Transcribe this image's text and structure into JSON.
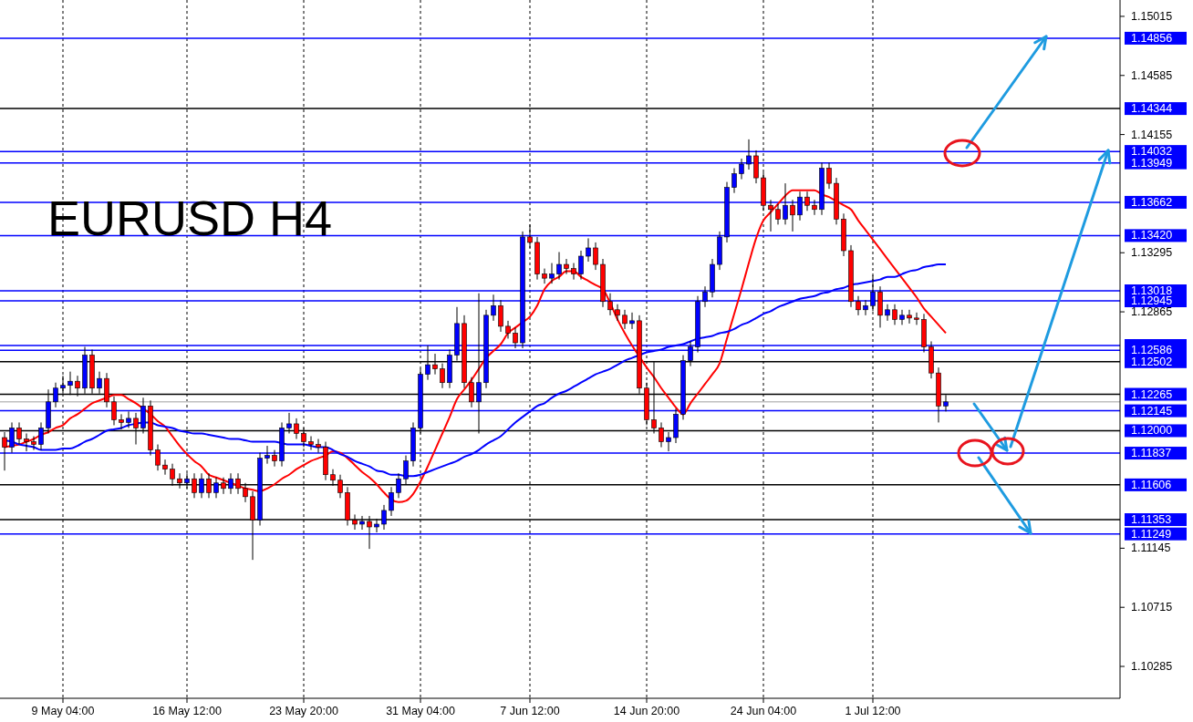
{
  "chart_data": {
    "type": "candlestick",
    "title": "EURUSD H4",
    "categories": [
      null,
      null,
      null,
      null,
      null,
      null,
      null,
      null,
      "9 May 04:00",
      null,
      null,
      null,
      null,
      null,
      null,
      null,
      null,
      null,
      null,
      null,
      null,
      null,
      null,
      null,
      null,
      "16 May 12:00",
      null,
      null,
      null,
      null,
      null,
      null,
      null,
      null,
      null,
      null,
      null,
      null,
      null,
      null,
      null,
      "23 May 20:00",
      null,
      null,
      null,
      null,
      null,
      null,
      null,
      null,
      null,
      null,
      null,
      null,
      null,
      null,
      null,
      "31 May 04:00",
      null,
      null,
      null,
      null,
      null,
      null,
      null,
      null,
      null,
      null,
      null,
      null,
      null,
      null,
      "7 Jun 12:00",
      null,
      null,
      null,
      null,
      null,
      null,
      null,
      null,
      null,
      null,
      null,
      null,
      null,
      null,
      null,
      "14 Jun 20:00",
      null,
      null,
      null,
      null,
      null,
      null,
      null,
      null,
      null,
      null,
      null,
      null,
      null,
      null,
      null,
      "24 Jun 04:00",
      null,
      null,
      null,
      null,
      null,
      null,
      null,
      null,
      null,
      null,
      null,
      null,
      null,
      null,
      "1 Jul 12:00",
      null,
      null,
      null,
      null,
      null,
      null,
      null,
      null,
      null,
      null
    ],
    "colors": [
      "#ff0000",
      "#0000ff",
      "#ff0000",
      "#ff0000",
      "#ff0000",
      "#0000ff",
      "#0000ff",
      "#0000ff",
      "#0000ff",
      "#0000ff",
      "#ff0000",
      "#0000ff",
      "#ff0000",
      "#0000ff",
      "#ff0000",
      "#ff0000",
      "#ff0000",
      "#0000ff",
      "#ff0000",
      "#0000ff",
      "#ff0000",
      "#ff0000",
      "#ff0000",
      "#ff0000",
      "#ff0000",
      "#0000ff",
      "#ff0000",
      "#0000ff",
      "#ff0000",
      "#0000ff",
      "#ff0000",
      "#0000ff",
      "#ff0000",
      "#ff0000",
      "#ff0000",
      "#0000ff",
      "#0000ff",
      "#ff0000",
      "#0000ff",
      "#0000ff",
      "#ff0000",
      "#ff0000",
      "#ff0000",
      "#ff0000",
      "#ff0000",
      "#ff0000",
      "#ff0000",
      "#ff0000",
      "#ff0000",
      "#0000ff",
      "#ff0000",
      "#0000ff",
      "#0000ff",
      "#0000ff",
      "#0000ff",
      "#0000ff",
      "#0000ff",
      "#0000ff",
      "#0000ff",
      "#ff0000",
      "#ff0000",
      "#0000ff",
      "#0000ff",
      "#ff0000",
      "#ff0000",
      "#0000ff",
      "#0000ff",
      "#0000ff",
      "#ff0000",
      "#ff0000",
      "#ff0000",
      "#0000ff",
      "#ff0000",
      "#ff0000",
      "#ff0000",
      "#0000ff",
      "#0000ff",
      "#ff0000",
      "#ff0000",
      "#0000ff",
      "#0000ff",
      "#ff0000",
      "#ff0000",
      "#ff0000",
      "#ff0000",
      "#ff0000",
      "#0000ff",
      "#ff0000",
      "#ff0000",
      "#ff0000",
      "#ff0000",
      "#0000ff",
      "#0000ff",
      "#0000ff",
      "#0000ff",
      "#0000ff",
      "#0000ff",
      "#0000ff",
      "#0000ff",
      "#0000ff",
      "#0000ff",
      "#0000ff",
      "#0000ff",
      "#ff0000",
      "#ff0000",
      "#ff0000",
      "#ff0000",
      "#0000ff",
      "#ff0000",
      "#0000ff",
      "#ff0000",
      "#ff0000",
      "#0000ff",
      "#ff0000",
      "#ff0000",
      "#ff0000",
      "#ff0000",
      "#ff0000",
      "#0000ff",
      "#0000ff",
      "#ff0000",
      "#0000ff",
      "#ff0000",
      "#0000ff",
      "#ff0000",
      "#ff0000",
      "#ff0000",
      "#ff0000",
      "#ff0000",
      "#0000ff"
    ],
    "ohlc": [
      [
        1.1195,
        1.1199,
        1.1171,
        1.1188
      ],
      [
        1.1188,
        1.1206,
        1.1184,
        1.1202
      ],
      [
        1.1202,
        1.1206,
        1.119,
        1.1194
      ],
      [
        1.1194,
        1.1198,
        1.1185,
        1.1192
      ],
      [
        1.1192,
        1.1196,
        1.1186,
        1.119
      ],
      [
        1.119,
        1.1206,
        1.1186,
        1.1202
      ],
      [
        1.1202,
        1.123,
        1.1198,
        1.1221
      ],
      [
        1.1221,
        1.1235,
        1.1217,
        1.1231
      ],
      [
        1.1231,
        1.124,
        1.1227,
        1.1233
      ],
      [
        1.1233,
        1.1243,
        1.1226,
        1.1236
      ],
      [
        1.1236,
        1.124,
        1.1225,
        1.1231
      ],
      [
        1.1231,
        1.1261,
        1.1227,
        1.1255
      ],
      [
        1.1255,
        1.1259,
        1.1227,
        1.1231
      ],
      [
        1.1231,
        1.1243,
        1.1227,
        1.1238
      ],
      [
        1.1238,
        1.1242,
        1.1217,
        1.1221
      ],
      [
        1.1221,
        1.1225,
        1.1204,
        1.1208
      ],
      [
        1.1208,
        1.1212,
        1.1201,
        1.1206
      ],
      [
        1.1206,
        1.1214,
        1.1202,
        1.1209
      ],
      [
        1.1209,
        1.1213,
        1.119,
        1.1202
      ],
      [
        1.1202,
        1.1224,
        1.1198,
        1.1218
      ],
      [
        1.1218,
        1.1222,
        1.1182,
        1.1186
      ],
      [
        1.1186,
        1.119,
        1.1171,
        1.1175
      ],
      [
        1.1175,
        1.1179,
        1.1168,
        1.1172
      ],
      [
        1.1172,
        1.1176,
        1.116,
        1.1165
      ],
      [
        1.1165,
        1.1169,
        1.1158,
        1.1162
      ],
      [
        1.1162,
        1.1169,
        1.1158,
        1.1165
      ],
      [
        1.1165,
        1.1169,
        1.1151,
        1.1155
      ],
      [
        1.1155,
        1.1169,
        1.1151,
        1.1165
      ],
      [
        1.1165,
        1.1169,
        1.1151,
        1.1155
      ],
      [
        1.1155,
        1.1166,
        1.1151,
        1.1162
      ],
      [
        1.1162,
        1.1166,
        1.1154,
        1.1158
      ],
      [
        1.1158,
        1.1169,
        1.1154,
        1.1165
      ],
      [
        1.1165,
        1.1169,
        1.1154,
        1.1158
      ],
      [
        1.1158,
        1.1162,
        1.1148,
        1.1152
      ],
      [
        1.1152,
        1.1156,
        1.1106,
        1.1135
      ],
      [
        1.1135,
        1.1184,
        1.1131,
        1.118
      ],
      [
        1.118,
        1.1189,
        1.1176,
        1.1182
      ],
      [
        1.1182,
        1.1186,
        1.1174,
        1.1178
      ],
      [
        1.1178,
        1.1206,
        1.1174,
        1.1202
      ],
      [
        1.1202,
        1.1213,
        1.1198,
        1.1205
      ],
      [
        1.1205,
        1.1209,
        1.1194,
        1.1198
      ],
      [
        1.1198,
        1.1202,
        1.1188,
        1.1192
      ],
      [
        1.1192,
        1.1196,
        1.1186,
        1.119
      ],
      [
        1.119,
        1.1194,
        1.1184,
        1.1188
      ],
      [
        1.1188,
        1.1192,
        1.1164,
        1.1168
      ],
      [
        1.1168,
        1.1172,
        1.116,
        1.1164
      ],
      [
        1.1164,
        1.1168,
        1.1151,
        1.1155
      ],
      [
        1.1155,
        1.1159,
        1.1131,
        1.1135
      ],
      [
        1.1135,
        1.1139,
        1.1128,
        1.1132
      ],
      [
        1.1132,
        1.1138,
        1.1128,
        1.1134
      ],
      [
        1.1134,
        1.1138,
        1.1114,
        1.113
      ],
      [
        1.113,
        1.1136,
        1.1126,
        1.1132
      ],
      [
        1.1132,
        1.1146,
        1.1128,
        1.1142
      ],
      [
        1.1142,
        1.1159,
        1.1138,
        1.1155
      ],
      [
        1.1155,
        1.1169,
        1.1151,
        1.1165
      ],
      [
        1.1165,
        1.1182,
        1.1161,
        1.1178
      ],
      [
        1.1178,
        1.1206,
        1.1174,
        1.1202
      ],
      [
        1.1202,
        1.1245,
        1.1198,
        1.1241
      ],
      [
        1.1241,
        1.1262,
        1.1237,
        1.1248
      ],
      [
        1.1248,
        1.1256,
        1.1241,
        1.1245
      ],
      [
        1.1245,
        1.1249,
        1.1231,
        1.1235
      ],
      [
        1.1235,
        1.1259,
        1.1231,
        1.1255
      ],
      [
        1.1255,
        1.129,
        1.1251,
        1.1278
      ],
      [
        1.1278,
        1.1284,
        1.1231,
        1.1235
      ],
      [
        1.1235,
        1.1239,
        1.1217,
        1.1221
      ],
      [
        1.1221,
        1.13,
        1.1198,
        1.1235
      ],
      [
        1.1235,
        1.1288,
        1.1231,
        1.1284
      ],
      [
        1.1284,
        1.1299,
        1.128,
        1.1291
      ],
      [
        1.1291,
        1.1295,
        1.1272,
        1.1276
      ],
      [
        1.1276,
        1.128,
        1.1267,
        1.1271
      ],
      [
        1.1271,
        1.1275,
        1.126,
        1.1264
      ],
      [
        1.1264,
        1.1345,
        1.126,
        1.1341
      ],
      [
        1.1341,
        1.135,
        1.1333,
        1.1337
      ],
      [
        1.1337,
        1.1341,
        1.131,
        1.1314
      ],
      [
        1.1314,
        1.1318,
        1.1307,
        1.1311
      ],
      [
        1.1311,
        1.1322,
        1.1307,
        1.1314
      ],
      [
        1.1314,
        1.133,
        1.131,
        1.1321
      ],
      [
        1.1321,
        1.1325,
        1.1314,
        1.1318
      ],
      [
        1.1318,
        1.1322,
        1.131,
        1.1314
      ],
      [
        1.1314,
        1.1331,
        1.131,
        1.1327
      ],
      [
        1.1327,
        1.134,
        1.1323,
        1.1333
      ],
      [
        1.1333,
        1.1337,
        1.1317,
        1.1321
      ],
      [
        1.1321,
        1.1325,
        1.129,
        1.1294
      ],
      [
        1.1294,
        1.13,
        1.1284,
        1.1288
      ],
      [
        1.1288,
        1.1292,
        1.128,
        1.1284
      ],
      [
        1.1284,
        1.1288,
        1.1274,
        1.1278
      ],
      [
        1.1278,
        1.1286,
        1.1274,
        1.128
      ],
      [
        1.128,
        1.1284,
        1.1227,
        1.1231
      ],
      [
        1.1231,
        1.1235,
        1.1204,
        1.1208
      ],
      [
        1.1208,
        1.125,
        1.1198,
        1.1202
      ],
      [
        1.1202,
        1.1206,
        1.1188,
        1.1192
      ],
      [
        1.1192,
        1.1199,
        1.1185,
        1.1195
      ],
      [
        1.1195,
        1.1216,
        1.1191,
        1.1212
      ],
      [
        1.1212,
        1.1255,
        1.1208,
        1.1251
      ],
      [
        1.1251,
        1.1265,
        1.1247,
        1.1261
      ],
      [
        1.1261,
        1.1298,
        1.1257,
        1.1294
      ],
      [
        1.1294,
        1.1305,
        1.129,
        1.1301
      ],
      [
        1.1301,
        1.1325,
        1.1297,
        1.1321
      ],
      [
        1.1321,
        1.1345,
        1.1317,
        1.1341
      ],
      [
        1.1341,
        1.1381,
        1.1337,
        1.1377
      ],
      [
        1.1377,
        1.1391,
        1.1373,
        1.1387
      ],
      [
        1.1387,
        1.1398,
        1.1383,
        1.1394
      ],
      [
        1.1394,
        1.1412,
        1.139,
        1.14
      ],
      [
        1.14,
        1.1404,
        1.138,
        1.1384
      ],
      [
        1.1384,
        1.1388,
        1.136,
        1.1364
      ],
      [
        1.1364,
        1.1368,
        1.1345,
        1.1361
      ],
      [
        1.1361,
        1.1365,
        1.135,
        1.1354
      ],
      [
        1.1354,
        1.138,
        1.135,
        1.1364
      ],
      [
        1.1364,
        1.1368,
        1.1345,
        1.1357
      ],
      [
        1.1357,
        1.1374,
        1.1353,
        1.137
      ],
      [
        1.137,
        1.1374,
        1.136,
        1.1364
      ],
      [
        1.1364,
        1.1368,
        1.1357,
        1.1361
      ],
      [
        1.1361,
        1.1395,
        1.1357,
        1.1391
      ],
      [
        1.1391,
        1.1395,
        1.1376,
        1.138
      ],
      [
        1.138,
        1.1384,
        1.135,
        1.1354
      ],
      [
        1.1354,
        1.1358,
        1.1327,
        1.1331
      ],
      [
        1.1331,
        1.1335,
        1.129,
        1.1294
      ],
      [
        1.1294,
        1.1298,
        1.1284,
        1.1288
      ],
      [
        1.1288,
        1.1295,
        1.1284,
        1.1291
      ],
      [
        1.1291,
        1.1313,
        1.1287,
        1.1301
      ],
      [
        1.1301,
        1.1305,
        1.1275,
        1.1284
      ],
      [
        1.1284,
        1.1292,
        1.128,
        1.1288
      ],
      [
        1.1288,
        1.1292,
        1.1277,
        1.1281
      ],
      [
        1.1281,
        1.1288,
        1.1277,
        1.1284
      ],
      [
        1.1284,
        1.1288,
        1.1278,
        1.1282
      ],
      [
        1.1282,
        1.1286,
        1.1277,
        1.1281
      ],
      [
        1.1281,
        1.1285,
        1.1257,
        1.1261
      ],
      [
        1.1261,
        1.1265,
        1.1238,
        1.1242
      ],
      [
        1.1242,
        1.1246,
        1.1206,
        1.1218
      ],
      [
        1.1218,
        1.1226,
        1.1214,
        1.1221
      ]
    ],
    "series": [
      {
        "type": "line",
        "color": "#ff0000",
        "values": [
          1.1188,
          1.1189,
          1.119,
          1.1192,
          1.1194,
          1.1197,
          1.1199,
          1.1202,
          1.1204,
          1.1209,
          1.1212,
          1.1216,
          1.122,
          1.1222,
          1.1224,
          1.1226,
          1.1226,
          1.1223,
          1.122,
          1.1216,
          1.1212,
          1.1207,
          1.1203,
          1.1196,
          1.1189,
          1.1183,
          1.1178,
          1.1174,
          1.1168,
          1.1166,
          1.1164,
          1.1162,
          1.116,
          1.1158,
          1.1157,
          1.1156,
          1.1158,
          1.1161,
          1.1165,
          1.1168,
          1.1172,
          1.1175,
          1.1178,
          1.118,
          1.1182,
          1.1185,
          1.1184,
          1.118,
          1.1175,
          1.117,
          1.1166,
          1.1161,
          1.1155,
          1.115,
          1.1148,
          1.1149,
          1.1154,
          1.1163,
          1.1174,
          1.1186,
          1.1198,
          1.121,
          1.1223,
          1.123,
          1.1237,
          1.1245,
          1.1253,
          1.1258,
          1.1263,
          1.1271,
          1.1275,
          1.1279,
          1.1283,
          1.1291,
          1.1303,
          1.1309,
          1.1312,
          1.1316,
          1.1316,
          1.1312,
          1.1309,
          1.1306,
          1.1303,
          1.1293,
          1.1281,
          1.1271,
          1.1262,
          1.1254,
          1.1246,
          1.1239,
          1.1231,
          1.1224,
          1.1217,
          1.1212,
          1.122,
          1.1227,
          1.1234,
          1.1241,
          1.1249,
          1.1267,
          1.1285,
          1.1303,
          1.1322,
          1.134,
          1.1353,
          1.1359,
          1.1365,
          1.1371,
          1.1375,
          1.1375,
          1.1375,
          1.1375,
          1.1372,
          1.137,
          1.1367,
          1.1364,
          1.1361,
          1.1353,
          1.1346,
          1.1339,
          1.1332,
          1.1325,
          1.1318,
          1.1311,
          1.1304,
          1.1297,
          1.1289,
          1.1283,
          1.1277,
          1.1271
        ]
      },
      {
        "type": "line",
        "color": "#0000ff",
        "values": [
          1.1193,
          1.1192,
          1.119,
          1.1189,
          1.1188,
          1.1186,
          1.1186,
          1.1186,
          1.1187,
          1.1187,
          1.1189,
          1.1192,
          1.1194,
          1.1197,
          1.12,
          1.1201,
          1.1202,
          1.1204,
          1.1205,
          1.1206,
          1.1206,
          1.1204,
          1.1203,
          1.1202,
          1.12,
          1.1199,
          1.1198,
          1.1198,
          1.1197,
          1.1196,
          1.1195,
          1.1194,
          1.1194,
          1.1193,
          1.1192,
          1.1192,
          1.1192,
          1.1192,
          1.1191,
          1.119,
          1.119,
          1.119,
          1.1189,
          1.1188,
          1.1188,
          1.1186,
          1.1183,
          1.1181,
          1.1178,
          1.1176,
          1.1174,
          1.1171,
          1.117,
          1.1168,
          1.1168,
          1.1167,
          1.1167,
          1.1168,
          1.117,
          1.1172,
          1.1174,
          1.1176,
          1.1178,
          1.1181,
          1.1183,
          1.1186,
          1.119,
          1.1193,
          1.1196,
          1.1201,
          1.1206,
          1.121,
          1.1214,
          1.1218,
          1.122,
          1.1224,
          1.1227,
          1.1229,
          1.1232,
          1.1235,
          1.1238,
          1.1241,
          1.1243,
          1.1245,
          1.1248,
          1.1251,
          1.1253,
          1.1255,
          1.1257,
          1.1258,
          1.1259,
          1.1261,
          1.1262,
          1.1263,
          1.1265,
          1.1267,
          1.1268,
          1.1269,
          1.1271,
          1.1272,
          1.1274,
          1.1277,
          1.1279,
          1.1282,
          1.1285,
          1.1287,
          1.129,
          1.1292,
          1.1294,
          1.1296,
          1.1297,
          1.1298,
          1.13,
          1.1301,
          1.1303,
          1.1304,
          1.1306,
          1.1307,
          1.1308,
          1.1309,
          1.131,
          1.1312,
          1.1312,
          1.1314,
          1.1316,
          1.1317,
          1.1319,
          1.132,
          1.1321,
          1.1321
        ]
      }
    ],
    "ylim": [
      1.10053,
      1.15134
    ],
    "yticks": [
      1.15015,
      1.14585,
      1.14155,
      1.13295,
      1.12865,
      1.11145,
      1.10715,
      1.10285
    ],
    "grid": "x",
    "ref_lines": [
      {
        "axis": "y",
        "value": 1.14856,
        "label": "1.14856",
        "color": "#0000ff"
      },
      {
        "axis": "y",
        "value": 1.14344,
        "label": "1.14344",
        "color": "#000000"
      },
      {
        "axis": "y",
        "value": 1.14032,
        "label": "1.14032",
        "color": "#0000ff"
      },
      {
        "axis": "y",
        "value": 1.13949,
        "label": "1.13949",
        "color": "#0000ff"
      },
      {
        "axis": "y",
        "value": 1.13662,
        "label": "1.13662",
        "color": "#0000ff"
      },
      {
        "axis": "y",
        "value": 1.1342,
        "label": "1.13420",
        "color": "#0000ff"
      },
      {
        "axis": "y",
        "value": 1.13018,
        "label": "1.13018",
        "color": "#0000ff"
      },
      {
        "axis": "y",
        "value": 1.12945,
        "label": "1.12945",
        "color": "#0000ff"
      },
      {
        "axis": "y",
        "value": 1.1262,
        "label": null,
        "color": "#0000ff"
      },
      {
        "axis": "y",
        "value": 1.12586,
        "label": "1.12586",
        "color": "#0000ff"
      },
      {
        "axis": "y",
        "value": 1.12502,
        "label": "1.12502",
        "color": "#000000"
      },
      {
        "axis": "y",
        "value": 1.12265,
        "label": "1.12265",
        "color": "#000000"
      },
      {
        "axis": "y",
        "value": 1.1221,
        "label": null,
        "color": "#c0c0c0"
      },
      {
        "axis": "y",
        "value": 1.12145,
        "label": "1.12145",
        "color": "#0000ff"
      },
      {
        "axis": "y",
        "value": 1.12,
        "label": "1.12000",
        "color": "#000000"
      },
      {
        "axis": "y",
        "value": 1.11837,
        "label": "1.11837",
        "color": "#0000ff"
      },
      {
        "axis": "y",
        "value": 1.11606,
        "label": "1.11606",
        "color": "#000000"
      },
      {
        "axis": "y",
        "value": 1.11353,
        "label": "1.11353",
        "color": "#000000"
      },
      {
        "axis": "y",
        "value": 1.11249,
        "label": "1.11249",
        "color": "#0000ff"
      }
    ]
  }
}
